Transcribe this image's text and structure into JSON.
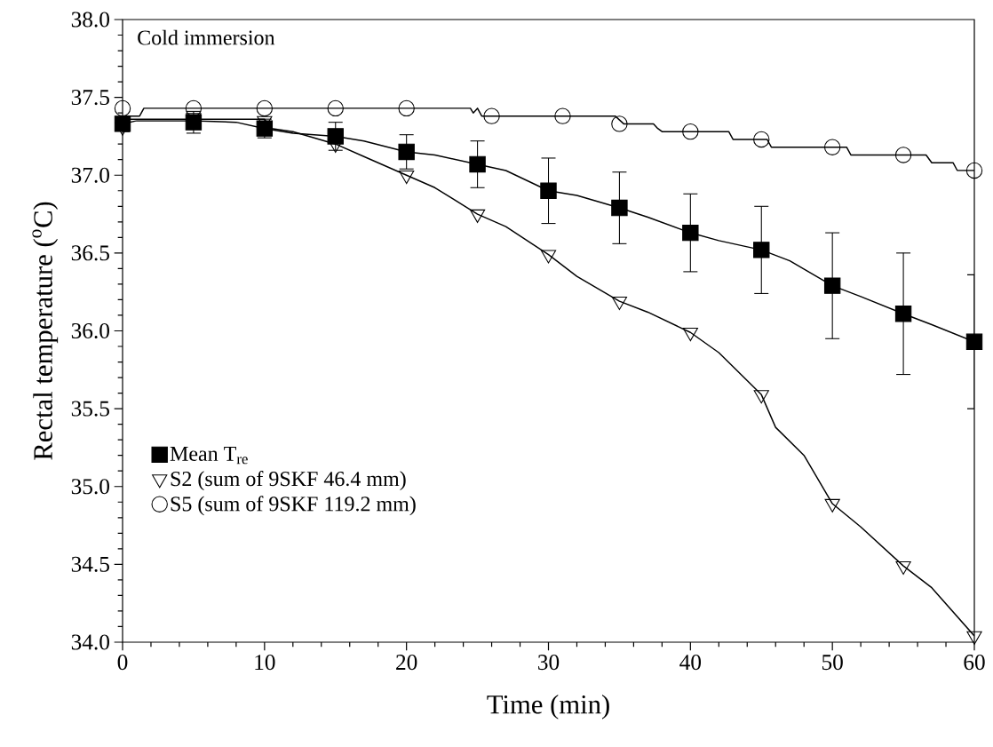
{
  "chart_data": {
    "type": "scatter",
    "xlabel": "Time (min)",
    "ylabel": "Rectal temperature ($^{o}$C)",
    "annotations": [
      "Cold immersion"
    ],
    "xlim": [
      0,
      60
    ],
    "xticks": [
      0,
      10,
      20,
      30,
      40,
      50,
      60
    ],
    "ylim": [
      34,
      38
    ],
    "yticks": [
      {
        "value": 34,
        "label": "34.0"
      },
      {
        "value": 34.5,
        "label": "34.5"
      },
      {
        "value": 35,
        "label": "35.0"
      },
      {
        "value": 35.5,
        "label": "35.5"
      },
      {
        "value": 36,
        "label": "36.0"
      },
      {
        "value": 36.5,
        "label": "36.5"
      },
      {
        "value": 37,
        "label": "37.0"
      },
      {
        "value": 37.5,
        "label": "37.5"
      },
      {
        "value": 38,
        "label": "38.0"
      }
    ],
    "legend": "bottom left",
    "series": [
      {
        "type": "line",
        "marker": "none",
        "color": "#000000",
        "x": [
          0,
          1.2,
          1.5,
          24.5,
          24.7,
          25,
          25.3,
          34.7,
          35.3,
          37.4,
          37.7,
          38,
          42.7,
          43,
          45.4,
          45.7,
          51,
          51.3,
          56.6,
          57,
          58.5,
          58.8,
          60
        ],
        "values": [
          37.38,
          37.38,
          37.43,
          37.43,
          37.4,
          37.43,
          37.38,
          37.38,
          37.33,
          37.33,
          37.3,
          37.28,
          37.28,
          37.23,
          37.23,
          37.18,
          37.18,
          37.13,
          37.13,
          37.08,
          37.08,
          37.03,
          37.03
        ]
      },
      {
        "type": "line",
        "marker": "none",
        "color": "#000000",
        "x": [
          0,
          0.5,
          10,
          10.5,
          12,
          15,
          17,
          20,
          22,
          25,
          27,
          30,
          32,
          35,
          37,
          40,
          42,
          45,
          46,
          48,
          50,
          52,
          55,
          57,
          60
        ],
        "values": [
          37.31,
          37.36,
          37.36,
          37.3,
          37.28,
          37.2,
          37.12,
          37.0,
          36.92,
          36.75,
          36.67,
          36.49,
          36.35,
          36.19,
          36.12,
          35.99,
          35.86,
          35.59,
          35.38,
          35.2,
          34.89,
          34.74,
          34.49,
          34.35,
          34.04
        ]
      },
      {
        "type": "line",
        "marker": "none",
        "color": "#000000",
        "x": [
          0,
          1,
          5,
          8,
          10,
          12,
          15,
          17,
          20,
          22,
          25,
          27,
          30,
          32,
          35,
          37,
          40,
          42,
          45,
          47,
          50,
          52,
          55,
          57,
          60
        ],
        "values": [
          37.33,
          37.35,
          37.35,
          37.34,
          37.3,
          37.27,
          37.25,
          37.22,
          37.15,
          37.13,
          37.07,
          37.03,
          36.9,
          36.87,
          36.79,
          36.73,
          36.63,
          36.58,
          36.52,
          36.45,
          36.29,
          36.22,
          36.11,
          36.04,
          35.93
        ]
      },
      {
        "name": "Mean T$_{re}$",
        "marker": "square",
        "color": "#000000",
        "x": [
          0,
          5,
          10,
          15,
          20,
          25,
          30,
          35,
          40,
          45,
          50,
          55,
          60
        ],
        "values": [
          37.33,
          37.34,
          37.3,
          37.25,
          37.15,
          37.07,
          36.9,
          36.79,
          36.63,
          36.52,
          36.29,
          36.11,
          35.93
        ],
        "errors": [
          0.05,
          0.07,
          0.06,
          0.09,
          0.11,
          0.15,
          0.21,
          0.23,
          0.25,
          0.28,
          0.34,
          0.39,
          0.43
        ]
      },
      {
        "name": "S2 (sum of 9SKF 46.4 mm)",
        "marker": "triangle",
        "color": "#000000",
        "x": [
          0,
          5,
          10,
          15,
          20,
          25,
          30,
          35,
          40,
          45,
          50,
          55,
          60
        ],
        "values": [
          37.31,
          37.37,
          37.35,
          37.2,
          37.0,
          36.75,
          36.49,
          36.19,
          35.99,
          35.59,
          34.89,
          34.49,
          34.04
        ]
      },
      {
        "name": "S5 (sum of 9SKF 119.2 mm)",
        "marker": "circle",
        "color": "#000000",
        "x": [
          0,
          5,
          10,
          15,
          20,
          26,
          31,
          35,
          40,
          45,
          50,
          55,
          60
        ],
        "values": [
          37.43,
          37.43,
          37.43,
          37.43,
          37.43,
          37.38,
          37.38,
          37.33,
          37.28,
          37.23,
          37.18,
          37.13,
          37.03
        ]
      }
    ]
  }
}
